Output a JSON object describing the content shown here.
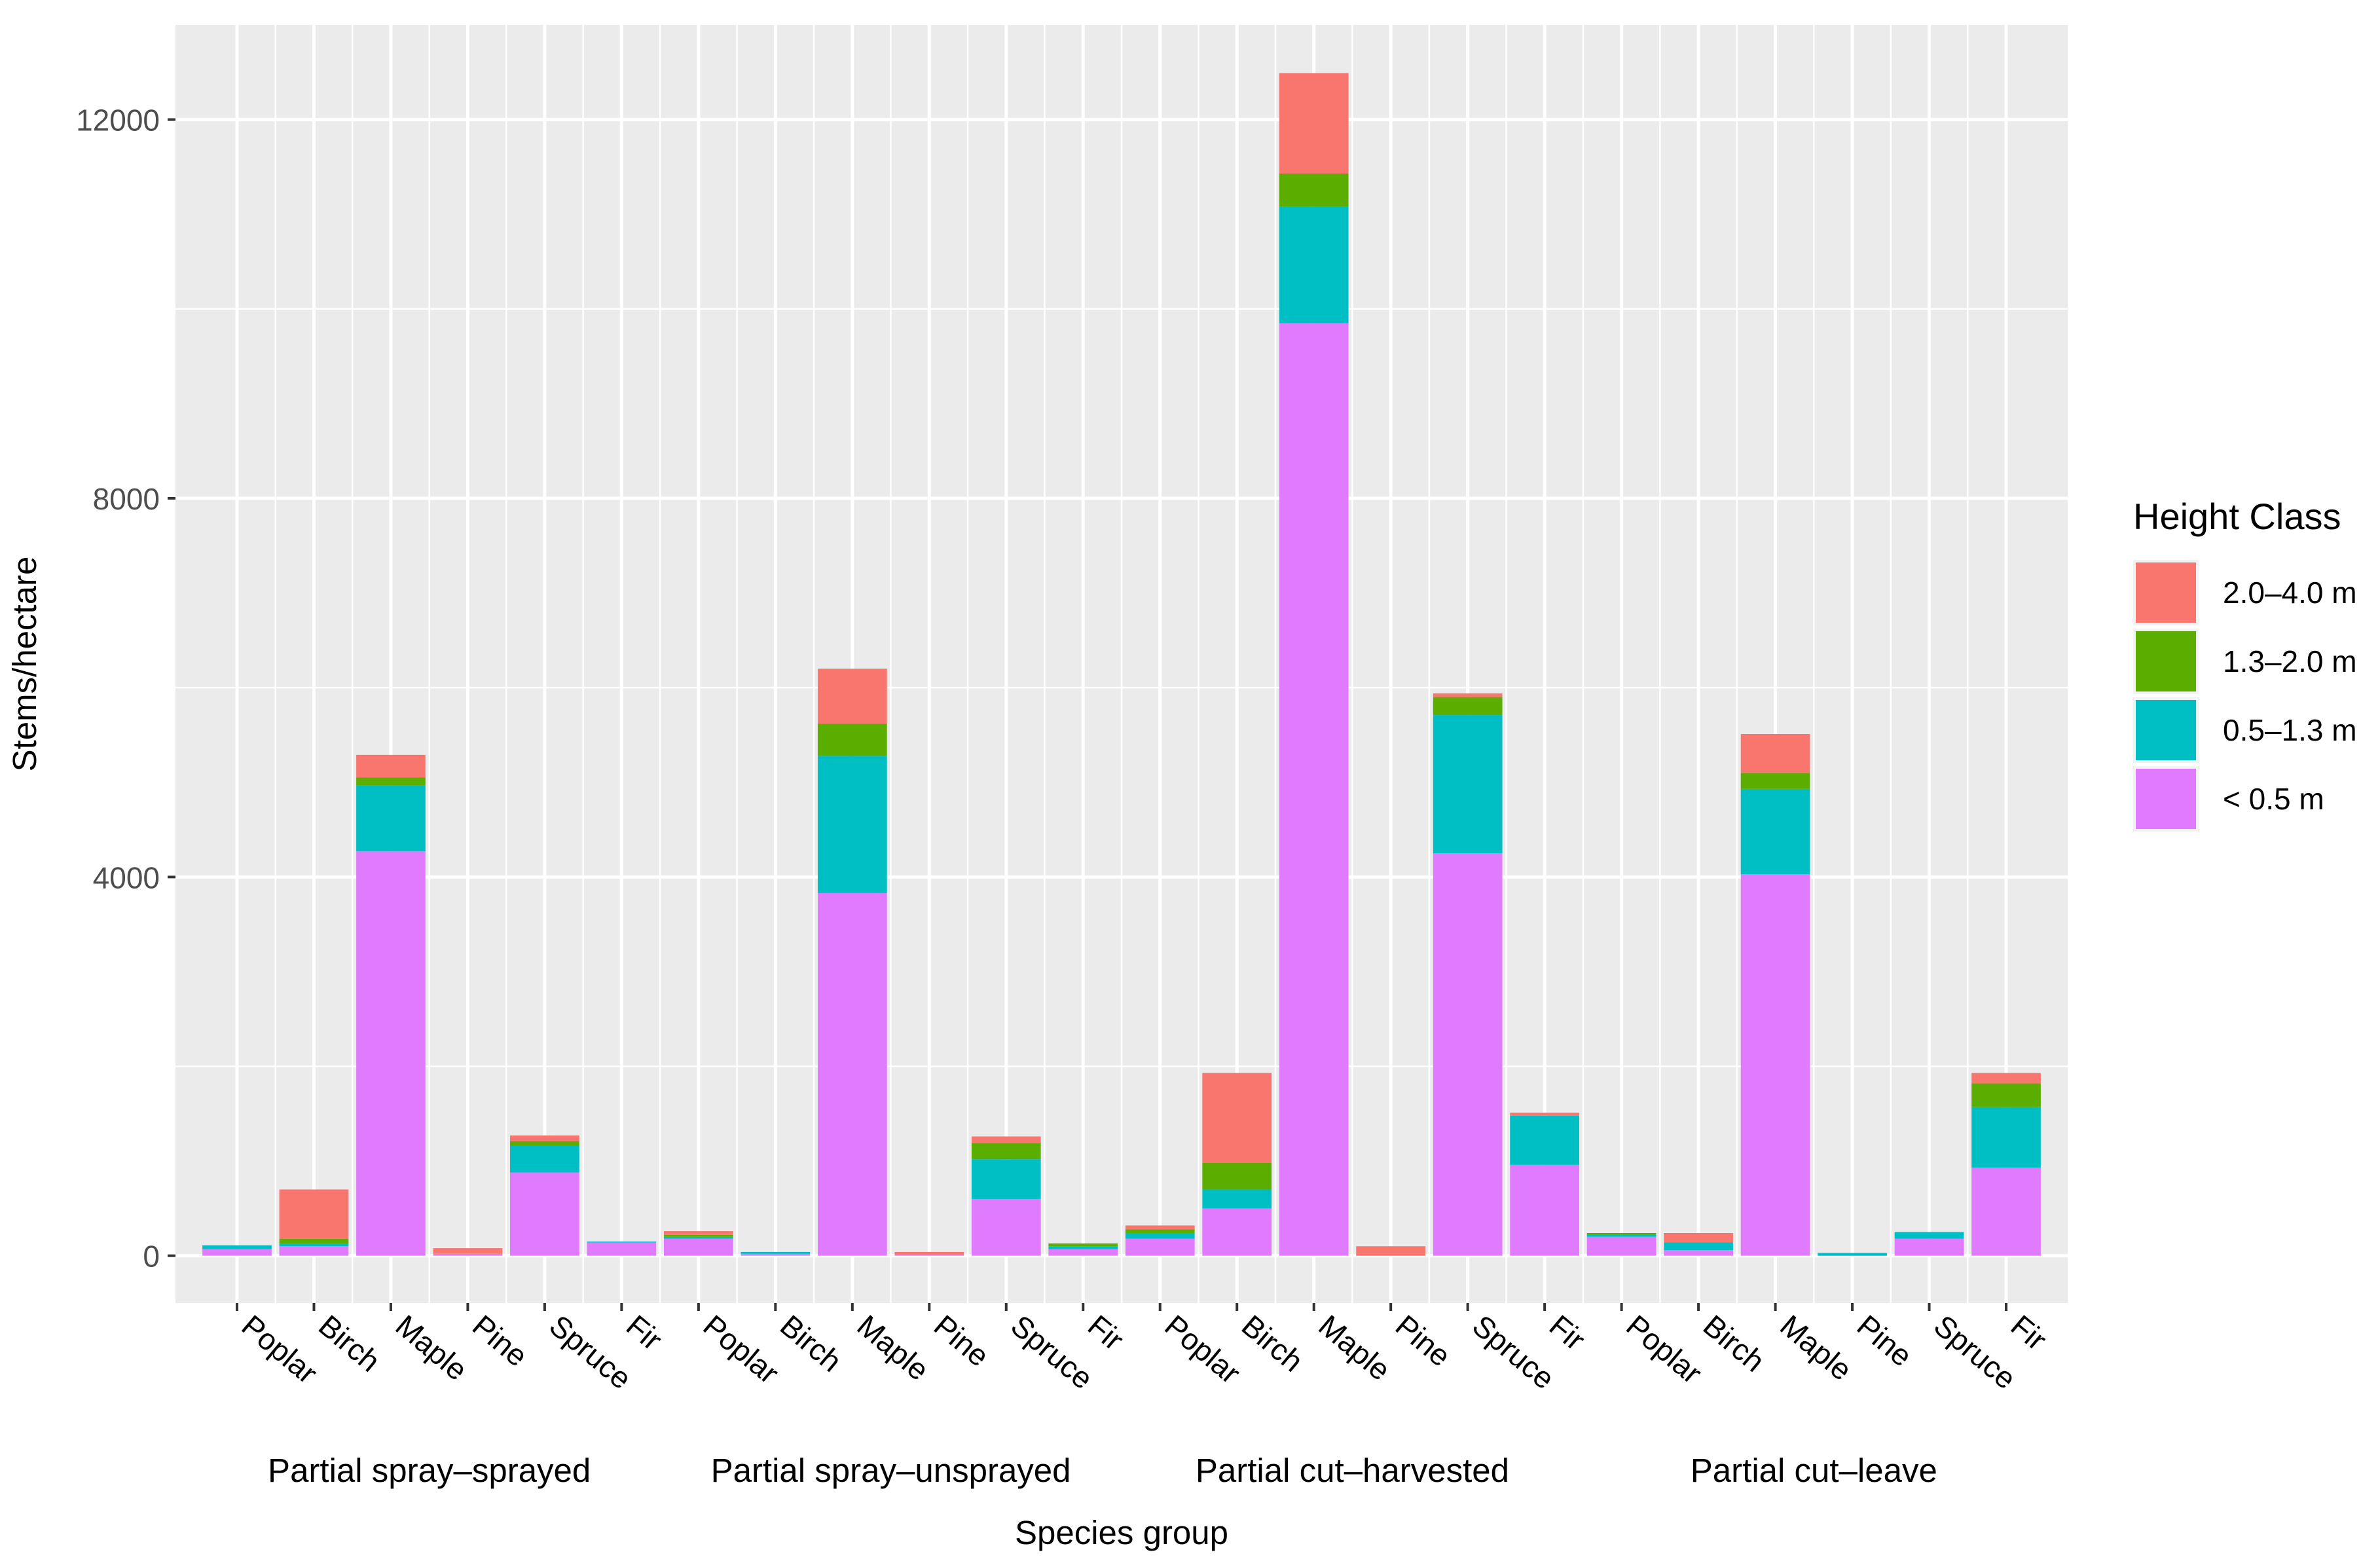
{
  "chart_data": {
    "type": "bar",
    "stacked": true,
    "title": "",
    "xlabel": "Species group",
    "ylabel": "Stems/hectare",
    "ylim": [
      -500,
      13000
    ],
    "yticks": [
      0,
      4000,
      8000,
      12000
    ],
    "yticks_minor": [
      2000,
      6000,
      10000
    ],
    "grid": true,
    "legend_position": "right",
    "legend_title": "Height Class",
    "groups": [
      "Partial spray–sprayed",
      "Partial spray–unsprayed",
      "Partial cut–harvested",
      "Partial cut–leave"
    ],
    "categories": [
      "Poplar",
      "Birch",
      "Maple",
      "Pine",
      "Spruce",
      "Fir"
    ],
    "series": [
      {
        "name": "< 0.5 m",
        "color": "#E07BFF",
        "values": [
          [
            70,
            100,
            4270,
            20,
            880,
            140
          ],
          [
            180,
            20,
            3830,
            10,
            600,
            70
          ],
          [
            180,
            500,
            9850,
            0,
            4250,
            960
          ],
          [
            200,
            60,
            4030,
            0,
            180,
            930
          ]
        ]
      },
      {
        "name": "0.5–1.3 m",
        "color": "#00BFC4",
        "values": [
          [
            40,
            30,
            700,
            0,
            280,
            10
          ],
          [
            20,
            20,
            1450,
            0,
            420,
            30
          ],
          [
            60,
            200,
            1230,
            0,
            1460,
            520
          ],
          [
            20,
            80,
            900,
            30,
            70,
            640
          ]
        ]
      },
      {
        "name": "1.3–2.0 m",
        "color": "#5BAE00",
        "values": [
          [
            0,
            50,
            80,
            0,
            50,
            0
          ],
          [
            20,
            0,
            340,
            0,
            170,
            30
          ],
          [
            40,
            280,
            350,
            0,
            190,
            0
          ],
          [
            20,
            0,
            170,
            0,
            0,
            250
          ]
        ]
      },
      {
        "name": "2.0–4.0 m",
        "color": "#F8766D",
        "values": [
          [
            0,
            520,
            240,
            60,
            60,
            0
          ],
          [
            40,
            0,
            580,
            30,
            70,
            0
          ],
          [
            40,
            950,
            1060,
            100,
            40,
            30
          ],
          [
            0,
            100,
            410,
            0,
            0,
            110
          ]
        ]
      }
    ],
    "legend_order": [
      "2.0–4.0 m",
      "1.3–2.0 m",
      "0.5–1.3 m",
      "< 0.5 m"
    ]
  }
}
